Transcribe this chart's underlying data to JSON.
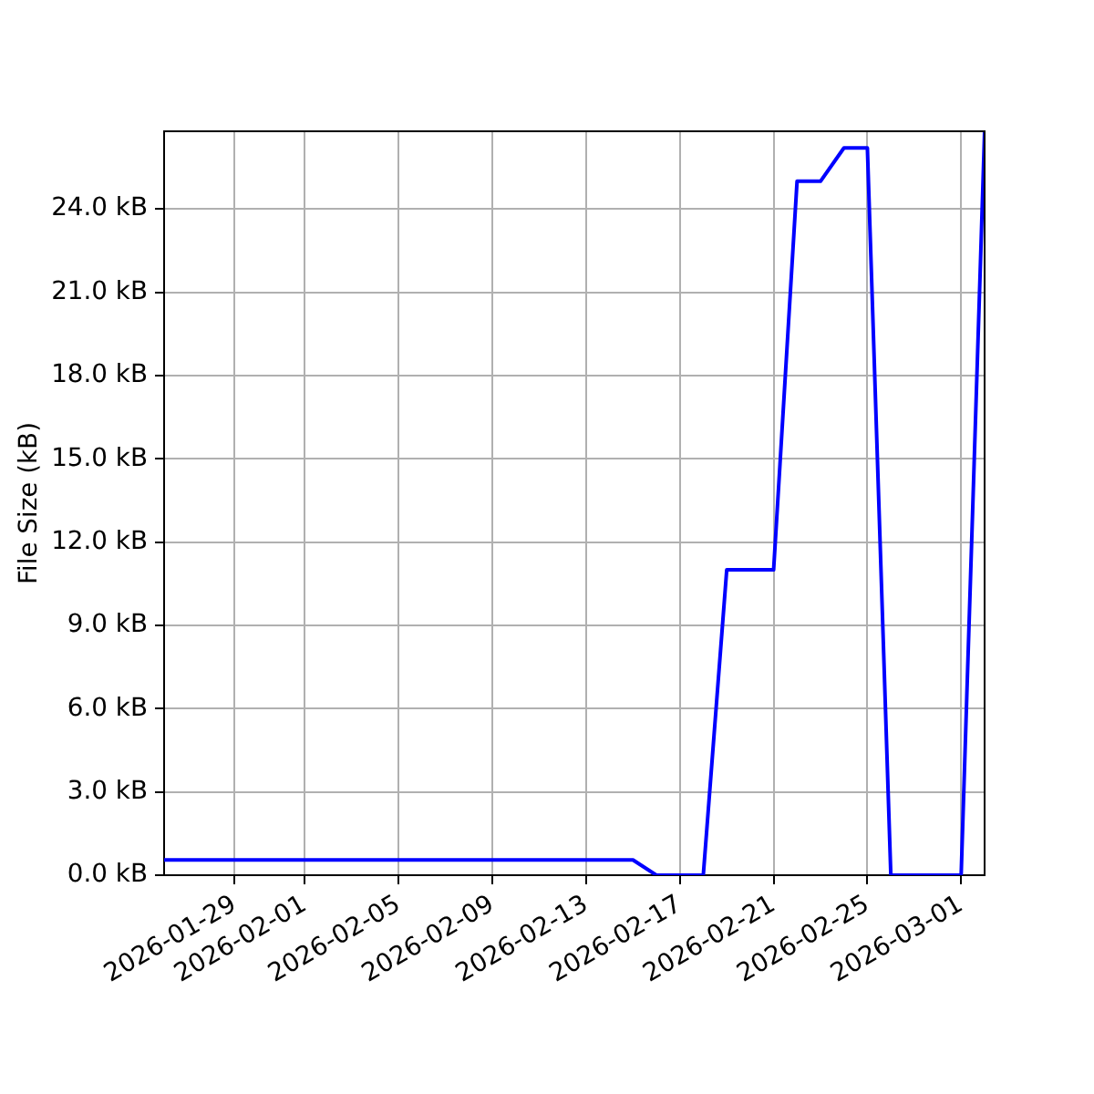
{
  "chart_data": {
    "type": "line",
    "ylabel": "File Size (kB)",
    "x": [
      "2026-01-26",
      "2026-01-27",
      "2026-01-28",
      "2026-01-29",
      "2026-01-30",
      "2026-01-31",
      "2026-02-01",
      "2026-02-02",
      "2026-02-03",
      "2026-02-04",
      "2026-02-05",
      "2026-02-06",
      "2026-02-07",
      "2026-02-08",
      "2026-02-09",
      "2026-02-10",
      "2026-02-11",
      "2026-02-12",
      "2026-02-13",
      "2026-02-14",
      "2026-02-15",
      "2026-02-16",
      "2026-02-17",
      "2026-02-18",
      "2026-02-19",
      "2026-02-20",
      "2026-02-21",
      "2026-02-22",
      "2026-02-23",
      "2026-02-24",
      "2026-02-25",
      "2026-02-26",
      "2026-02-27",
      "2026-02-28",
      "2026-03-01",
      "2026-03-02"
    ],
    "series": [
      {
        "color": "#0000ff",
        "values": [
          0.55,
          0.55,
          0.55,
          0.55,
          0.55,
          0.55,
          0.55,
          0.55,
          0.55,
          0.55,
          0.55,
          0.55,
          0.55,
          0.55,
          0.55,
          0.55,
          0.55,
          0.55,
          0.55,
          0.55,
          0.55,
          0,
          0,
          0,
          11,
          11,
          11,
          25,
          25,
          26.2,
          26.2,
          0,
          0,
          0,
          0,
          26.8
        ]
      }
    ],
    "xlim": [
      "2026-01-26",
      "2026-03-02"
    ],
    "xticks": [
      "2026-01-29",
      "2026-02-01",
      "2026-02-05",
      "2026-02-09",
      "2026-02-13",
      "2026-02-17",
      "2026-02-21",
      "2026-02-25",
      "2026-03-01"
    ],
    "ylim": [
      0,
      26.8
    ],
    "yticks": [
      {
        "value": 0,
        "label": "0.0 kB"
      },
      {
        "value": 3,
        "label": "3.0 kB"
      },
      {
        "value": 6,
        "label": "6.0 kB"
      },
      {
        "value": 9,
        "label": "9.0 kB"
      },
      {
        "value": 12,
        "label": "12.0 kB"
      },
      {
        "value": 15,
        "label": "15.0 kB"
      },
      {
        "value": 18,
        "label": "18.0 kB"
      },
      {
        "value": 21,
        "label": "21.0 kB"
      },
      {
        "value": 24,
        "label": "24.0 kB"
      }
    ],
    "grid": true
  }
}
